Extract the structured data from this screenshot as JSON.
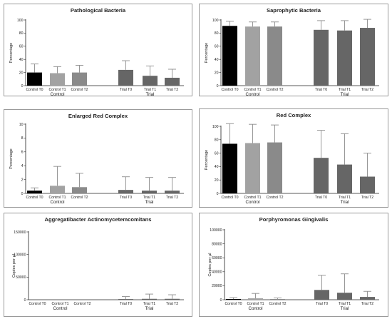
{
  "colors": {
    "control_t0": "#000000",
    "control_t1": "#a2a2a2",
    "control_t2": "#8a8a8a",
    "trial": "#666666",
    "error_bar": "#8c8c8c",
    "axis": "#222222"
  },
  "chart_data": [
    {
      "type": "bar",
      "title": "Pathological Bacteria",
      "ylabel": "Percentage",
      "ylim": [
        0,
        100
      ],
      "yticks": [
        "0",
        "20",
        "40",
        "60",
        "80",
        "100"
      ],
      "yticks_values": [
        0,
        20,
        40,
        60,
        80,
        100
      ],
      "categories": [
        "Control T0",
        "Control T1",
        "Control T2",
        "Trial T0",
        "Trial T1",
        "Trial T2"
      ],
      "groups": [
        "Control",
        "Trial"
      ],
      "values": [
        20,
        19,
        20,
        24,
        15,
        12
      ],
      "errors": [
        13,
        10,
        11,
        14,
        15,
        13
      ]
    },
    {
      "type": "bar",
      "title": "Saprophytic Bacteria",
      "ylabel": "Percentage",
      "ylim": [
        0,
        100
      ],
      "yticks": [
        "0",
        "20",
        "40",
        "60",
        "80",
        "100"
      ],
      "yticks_values": [
        0,
        20,
        40,
        60,
        80,
        100
      ],
      "categories": [
        "Control T0",
        "Control T1",
        "Control T2",
        "Trial T0",
        "Trial T1",
        "Trial T2"
      ],
      "groups": [
        "Control",
        "Trial"
      ],
      "values": [
        91,
        90,
        90,
        85,
        84,
        88
      ],
      "errors": [
        7,
        7,
        7,
        14,
        15,
        13
      ]
    },
    {
      "type": "bar",
      "title": "Enlarged Red Complex",
      "ylabel": "Percentage",
      "ylim": [
        0,
        10
      ],
      "yticks": [
        "0",
        "2",
        "4",
        "6",
        "8",
        "10"
      ],
      "yticks_values": [
        0,
        2,
        4,
        6,
        8,
        10
      ],
      "categories": [
        "Control T0",
        "Control T1",
        "Control T2",
        "Trial T0",
        "Trial T1",
        "Trial T2"
      ],
      "groups": [
        "Control",
        "Trial"
      ],
      "values": [
        0.4,
        1.1,
        0.9,
        0.5,
        0.4,
        0.4
      ],
      "errors": [
        0.4,
        2.8,
        2.0,
        1.9,
        1.9,
        1.9
      ]
    },
    {
      "type": "bar",
      "title": "Red Complex",
      "ylabel": "Percentage",
      "ylim": [
        0,
        100
      ],
      "yticks": [
        "0",
        "20",
        "40",
        "60",
        "80",
        "100"
      ],
      "yticks_values": [
        0,
        20,
        40,
        60,
        80,
        100
      ],
      "categories": [
        "Control T0",
        "Control T1",
        "Control T2",
        "Trial T0",
        "Trial T1",
        "Trial T2"
      ],
      "groups": [
        "Control",
        "Trial"
      ],
      "values": [
        74,
        75,
        76,
        53,
        43,
        25
      ],
      "errors": [
        30,
        28,
        26,
        41,
        46,
        35
      ]
    },
    {
      "type": "bar",
      "title": "Aggregatibacter Actinomycetemcomitans",
      "ylabel": "Copies per µl",
      "ylim": [
        0,
        150000
      ],
      "yticks": [
        "0",
        "50000",
        "100000",
        "150000"
      ],
      "yticks_values": [
        0,
        50000,
        100000,
        150000
      ],
      "categories": [
        "Control T0",
        "Control T1",
        "Control T2",
        "Trial T0",
        "Trial T1",
        "Trial T2"
      ],
      "groups": [
        "Control",
        "Trial"
      ],
      "values": [
        0,
        0,
        0,
        1500,
        2000,
        2000
      ],
      "errors": [
        0,
        0,
        0,
        5500,
        10500,
        9000
      ]
    },
    {
      "type": "bar",
      "title": "Porphyromonas Gingivalis",
      "ylabel": "Copies per µl",
      "ylim": [
        0,
        100000
      ],
      "yticks": [
        "0",
        "20000",
        "40000",
        "60000",
        "80000",
        "100000"
      ],
      "yticks_values": [
        0,
        20000,
        40000,
        60000,
        80000,
        100000
      ],
      "categories": [
        "Control T0",
        "Control T1",
        "Control T2",
        "Trial T0",
        "Trial T1",
        "Trial T2"
      ],
      "groups": [
        "Control",
        "Trial"
      ],
      "values": [
        1000,
        2000,
        1000,
        14000,
        10000,
        4000
      ],
      "errors": [
        2000,
        7000,
        1500,
        21000,
        27000,
        8000
      ]
    }
  ]
}
